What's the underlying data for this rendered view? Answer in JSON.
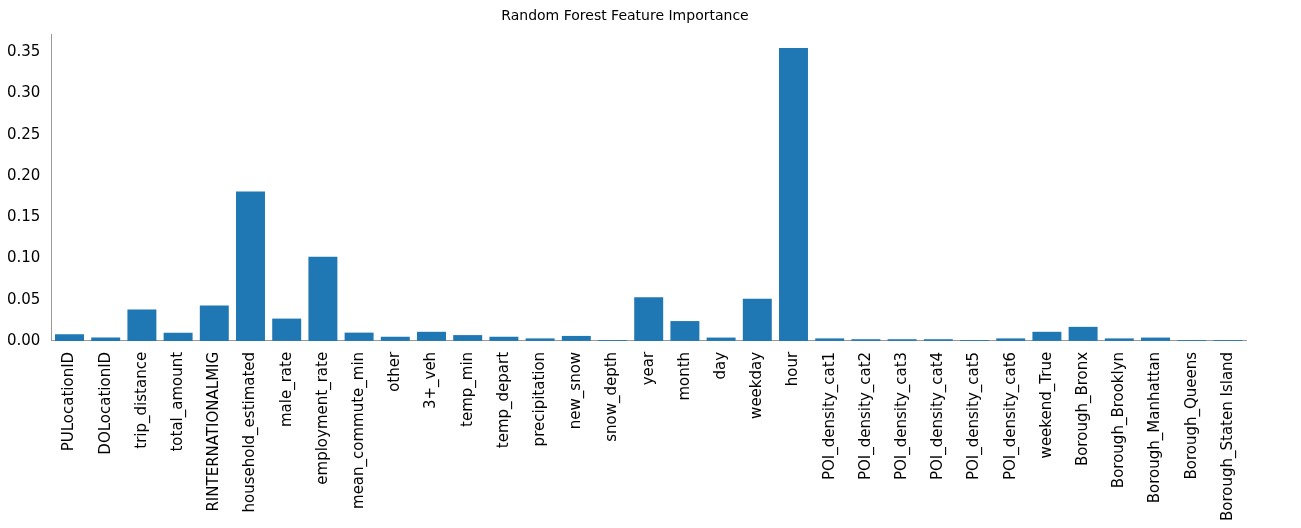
{
  "chart_data": {
    "type": "bar",
    "title": "Random Forest Feature Importance",
    "categories": [
      "PULocationID",
      "DOLocationID",
      "trip_distance",
      "total_amount",
      "RINTERNATIONALMIG",
      "household_estimated",
      "male_rate",
      "employment_rate",
      "mean_commute_min",
      "other",
      "3+_veh",
      "temp_min",
      "temp_depart",
      "precipitation",
      "new_snow",
      "snow_depth",
      "year",
      "month",
      "day",
      "weekday",
      "hour",
      "POI_density_cat1",
      "POI_density_cat2",
      "POI_density_cat3",
      "POI_density_cat4",
      "POI_density_cat5",
      "POI_density_cat6",
      "weekend_True",
      "Borough_Bronx",
      "Borough_Brooklyn",
      "Borough_Manhattan",
      "Borough_Queens",
      "Borough_Staten Island"
    ],
    "values": [
      0.008,
      0.004,
      0.038,
      0.01,
      0.043,
      0.181,
      0.027,
      0.102,
      0.01,
      0.005,
      0.011,
      0.007,
      0.005,
      0.003,
      0.006,
      0.001,
      0.053,
      0.024,
      0.004,
      0.051,
      0.355,
      0.003,
      0.002,
      0.002,
      0.002,
      0.001,
      0.003,
      0.011,
      0.017,
      0.003,
      0.004,
      0.001,
      0.001
    ],
    "color": "#1f77b4",
    "ylim": [
      0,
      0.371
    ],
    "yticks": [
      {
        "value": 0,
        "label": "0.00"
      },
      {
        "value": 0.05,
        "label": "0.05"
      },
      {
        "value": 0.1,
        "label": "0.10"
      },
      {
        "value": 0.15,
        "label": "0.15"
      },
      {
        "value": 0.2,
        "label": "0.20"
      },
      {
        "value": 0.25,
        "label": "0.25"
      },
      {
        "value": 0.3,
        "label": "0.30"
      },
      {
        "value": 0.35,
        "label": "0.35"
      }
    ],
    "grid": false,
    "legend": false
  }
}
